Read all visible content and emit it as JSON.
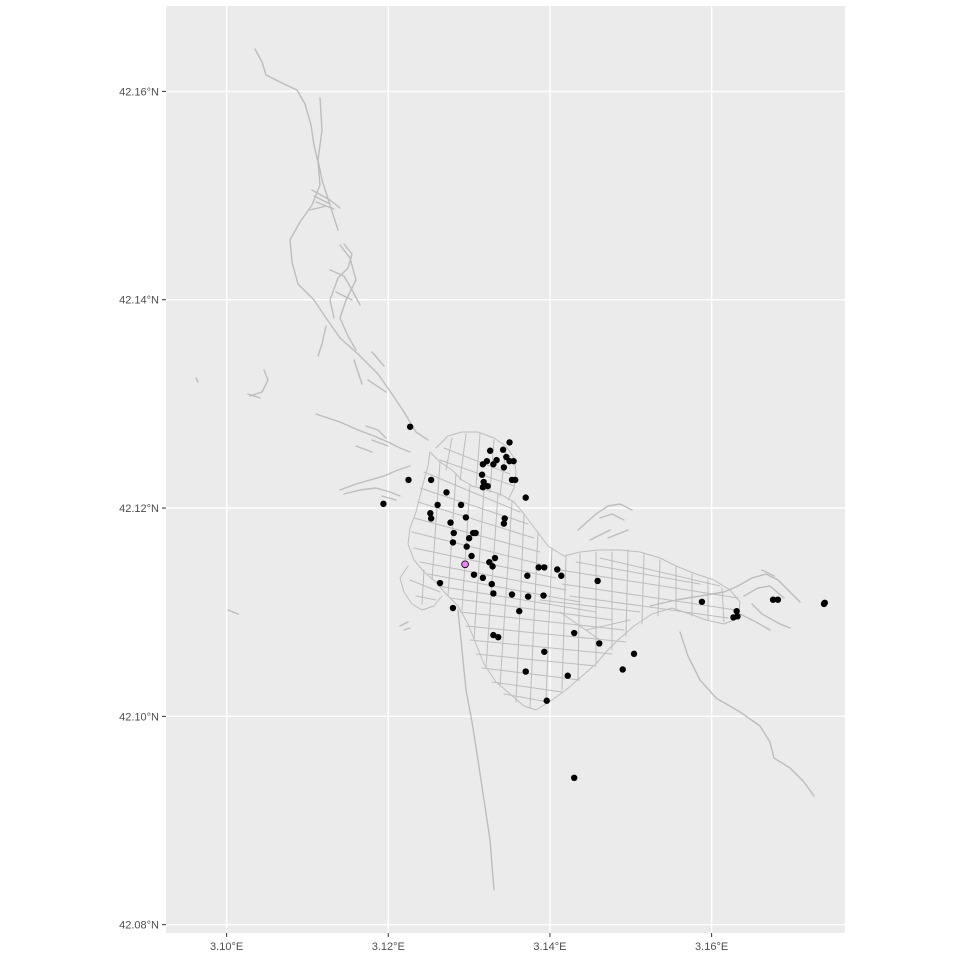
{
  "colors": {
    "panel_background": "#ebebeb",
    "grid_line": "#ffffff",
    "road": "#bdbdbd",
    "point": "#000000",
    "highlight_point": "#ee82ee",
    "tick_text": "#4d4d4d"
  },
  "axes": {
    "x_ticks": [
      "3.10°E",
      "3.12°E",
      "3.14°E",
      "3.16°E"
    ],
    "y_ticks": [
      "42.16°N",
      "42.14°N",
      "42.12°N",
      "42.10°N",
      "42.08°N"
    ]
  },
  "chart_data": {
    "type": "scatter",
    "title": "",
    "xlabel": "",
    "ylabel": "",
    "grid": true,
    "xlim": [
      3.0925,
      3.1765
    ],
    "ylim": [
      42.0792,
      42.1682
    ],
    "x_tick_values": [
      3.1,
      3.12,
      3.14,
      3.16
    ],
    "y_tick_values": [
      42.16,
      42.14,
      42.12,
      42.1,
      42.08
    ],
    "points": [
      [
        3.1227,
        42.1278
      ],
      [
        3.1225,
        42.1227
      ],
      [
        3.1194,
        42.1204
      ],
      [
        3.1253,
        42.1227
      ],
      [
        3.1272,
        42.1215
      ],
      [
        3.1252,
        42.1195
      ],
      [
        3.1253,
        42.119
      ],
      [
        3.1261,
        42.1203
      ],
      [
        3.129,
        42.1203
      ],
      [
        3.1277,
        42.1186
      ],
      [
        3.1296,
        42.1191
      ],
      [
        3.1305,
        42.1176
      ],
      [
        3.13,
        42.1171
      ],
      [
        3.1297,
        42.1163
      ],
      [
        3.1281,
        42.1176
      ],
      [
        3.128,
        42.1167
      ],
      [
        3.1303,
        42.1154
      ],
      [
        3.1295,
        42.1146
      ],
      [
        3.1306,
        42.1136
      ],
      [
        3.1317,
        42.1133
      ],
      [
        3.1325,
        42.1148
      ],
      [
        3.1329,
        42.1144
      ],
      [
        3.1332,
        42.1152
      ],
      [
        3.1328,
        42.1127
      ],
      [
        3.133,
        42.1118
      ],
      [
        3.1264,
        42.1128
      ],
      [
        3.128,
        42.1104
      ],
      [
        3.133,
        42.1078
      ],
      [
        3.1336,
        42.1076
      ],
      [
        3.1353,
        42.1117
      ],
      [
        3.1362,
        42.1101
      ],
      [
        3.1372,
        42.1135
      ],
      [
        3.1373,
        42.1115
      ],
      [
        3.1386,
        42.1143
      ],
      [
        3.1393,
        42.1143
      ],
      [
        3.1392,
        42.1116
      ],
      [
        3.1409,
        42.1141
      ],
      [
        3.1414,
        42.1135
      ],
      [
        3.1459,
        42.113
      ],
      [
        3.143,
        42.108
      ],
      [
        3.1393,
        42.1062
      ],
      [
        3.137,
        42.1043
      ],
      [
        3.1396,
        42.1015
      ],
      [
        3.1422,
        42.1039
      ],
      [
        3.1461,
        42.107
      ],
      [
        3.1504,
        42.106
      ],
      [
        3.149,
        42.1045
      ],
      [
        3.143,
        42.0941
      ],
      [
        3.1588,
        42.111
      ],
      [
        3.1627,
        42.1095
      ],
      [
        3.1632,
        42.1096
      ],
      [
        3.1631,
        42.1101
      ],
      [
        3.1676,
        42.1112
      ],
      [
        3.1682,
        42.1112
      ],
      [
        3.1739,
        42.1108
      ],
      [
        3.174,
        42.1109
      ],
      [
        3.1317,
        42.1242
      ],
      [
        3.1326,
        42.1255
      ],
      [
        3.133,
        42.1242
      ],
      [
        3.1334,
        42.1246
      ],
      [
        3.1322,
        42.1245
      ],
      [
        3.1316,
        42.1232
      ],
      [
        3.1318,
        42.1225
      ],
      [
        3.1317,
        42.122
      ],
      [
        3.1323,
        42.1221
      ],
      [
        3.1342,
        42.1256
      ],
      [
        3.135,
        42.1263
      ],
      [
        3.1346,
        42.1249
      ],
      [
        3.135,
        42.1245
      ],
      [
        3.1343,
        42.1239
      ],
      [
        3.1355,
        42.1245
      ],
      [
        3.1353,
        42.1227
      ],
      [
        3.1357,
        42.1227
      ],
      [
        3.137,
        42.121
      ],
      [
        3.1344,
        42.119
      ],
      [
        3.1343,
        42.1185
      ],
      [
        3.1308,
        42.1176
      ]
    ],
    "highlight_points": [
      [
        3.1295,
        42.1146
      ]
    ]
  }
}
